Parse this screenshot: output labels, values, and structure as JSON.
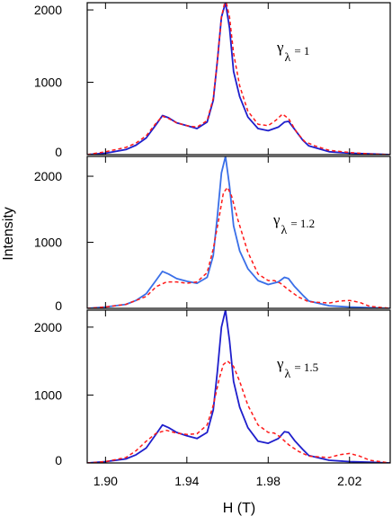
{
  "chart_data": {
    "type": "line",
    "xlabel": "H (T)",
    "ylabel": "Intensity",
    "xlim": [
      1.891,
      2.04
    ],
    "x_ticks": [
      1.9,
      1.94,
      1.98,
      2.02
    ],
    "x_tick_labels": [
      "1.90",
      "1.94",
      "1.98",
      "2.02"
    ],
    "grid": false,
    "panels": [
      {
        "annotation_symbol": "γ",
        "annotation_sub": "λ",
        "annotation_value": "= 1",
        "ylim": [
          0,
          2100
        ],
        "y_ticks": [
          0,
          1000,
          2000
        ],
        "y_tick_labels": [
          "0",
          "1000",
          "2000"
        ],
        "series": [
          {
            "color": "#1f1fcc",
            "style": "solid",
            "x": [
              1.891,
              1.9,
              1.91,
              1.915,
              1.92,
              1.925,
              1.928,
              1.931,
              1.935,
              1.94,
              1.945,
              1.95,
              1.953,
              1.955,
              1.957,
              1.959,
              1.961,
              1.963,
              1.966,
              1.97,
              1.975,
              1.98,
              1.985,
              1.988,
              1.99,
              1.993,
              1.997,
              2.0,
              2.01,
              2.02,
              2.03,
              2.04
            ],
            "y": [
              0,
              20,
              70,
              130,
              230,
              420,
              540,
              510,
              440,
              400,
              360,
              450,
              750,
              1300,
              1900,
              2100,
              1750,
              1150,
              800,
              520,
              360,
              330,
              380,
              450,
              460,
              350,
              200,
              120,
              40,
              20,
              10,
              0
            ]
          },
          {
            "color": "#ff1a1a",
            "style": "dashed",
            "x": [
              1.891,
              1.9,
              1.91,
              1.915,
              1.92,
              1.925,
              1.928,
              1.931,
              1.935,
              1.94,
              1.945,
              1.95,
              1.953,
              1.955,
              1.957,
              1.959,
              1.961,
              1.963,
              1.966,
              1.97,
              1.975,
              1.98,
              1.984,
              1.987,
              1.99,
              1.994,
              1.998,
              2.003,
              2.01,
              2.02,
              2.03,
              2.04
            ],
            "y": [
              0,
              40,
              100,
              160,
              260,
              440,
              530,
              500,
              440,
              400,
              380,
              470,
              780,
              1300,
              1900,
              2150,
              1900,
              1400,
              950,
              600,
              420,
              400,
              480,
              560,
              500,
              310,
              180,
              120,
              60,
              30,
              10,
              0
            ]
          }
        ]
      },
      {
        "annotation_symbol": "γ",
        "annotation_sub": "λ",
        "annotation_value": "= 1.2",
        "ylim": [
          0,
          2300
        ],
        "y_ticks": [
          0,
          1000,
          2000
        ],
        "y_tick_labels": [
          "0",
          "1000",
          "2000"
        ],
        "series": [
          {
            "color": "#3a6fe8",
            "style": "solid",
            "x": [
              1.891,
              1.9,
              1.91,
              1.915,
              1.92,
              1.925,
              1.928,
              1.931,
              1.935,
              1.94,
              1.945,
              1.95,
              1.953,
              1.955,
              1.957,
              1.959,
              1.961,
              1.963,
              1.966,
              1.97,
              1.975,
              1.98,
              1.985,
              1.988,
              1.99,
              1.993,
              1.997,
              2.0,
              2.01,
              2.02,
              2.03,
              2.04
            ],
            "y": [
              0,
              20,
              60,
              120,
              220,
              430,
              560,
              520,
              450,
              410,
              380,
              470,
              800,
              1400,
              2050,
              2300,
              1850,
              1250,
              870,
              600,
              420,
              360,
              400,
              470,
              450,
              330,
              200,
              110,
              40,
              20,
              10,
              0
            ]
          },
          {
            "color": "#ff1a1a",
            "style": "dashed",
            "x": [
              1.891,
              1.9,
              1.91,
              1.92,
              1.925,
              1.93,
              1.935,
              1.94,
              1.945,
              1.95,
              1.953,
              1.956,
              1.958,
              1.96,
              1.962,
              1.965,
              1.97,
              1.975,
              1.98,
              1.983,
              1.986,
              1.99,
              1.995,
              2.0,
              2.01,
              2.015,
              2.02,
              2.025,
              2.03,
              2.04
            ],
            "y": [
              0,
              20,
              60,
              180,
              330,
              400,
              400,
              380,
              400,
              540,
              900,
              1400,
              1750,
              1830,
              1700,
              1350,
              850,
              520,
              420,
              420,
              380,
              280,
              170,
              100,
              80,
              110,
              120,
              90,
              30,
              0
            ]
          }
        ]
      },
      {
        "annotation_symbol": "γ",
        "annotation_sub": "λ",
        "annotation_value": "= 1.5",
        "ylim": [
          0,
          2250
        ],
        "y_ticks": [
          0,
          1000,
          2000
        ],
        "y_tick_labels": [
          "0",
          "1000",
          "2000"
        ],
        "series": [
          {
            "color": "#1f1fcc",
            "style": "solid",
            "x": [
              1.891,
              1.9,
              1.91,
              1.915,
              1.92,
              1.925,
              1.928,
              1.931,
              1.935,
              1.94,
              1.945,
              1.95,
              1.953,
              1.955,
              1.957,
              1.959,
              1.961,
              1.963,
              1.966,
              1.97,
              1.975,
              1.98,
              1.985,
              1.988,
              1.99,
              1.993,
              1.997,
              2.0,
              2.01,
              2.02,
              2.03,
              2.04
            ],
            "y": [
              0,
              20,
              60,
              120,
              220,
              430,
              560,
              520,
              450,
              400,
              360,
              450,
              780,
              1350,
              2000,
              2250,
              1800,
              1200,
              820,
              520,
              320,
              290,
              360,
              460,
              450,
              330,
              200,
              110,
              40,
              20,
              10,
              0
            ]
          },
          {
            "color": "#ff1a1a",
            "style": "dashed",
            "x": [
              1.891,
              1.9,
              1.91,
              1.915,
              1.92,
              1.925,
              1.93,
              1.935,
              1.94,
              1.945,
              1.95,
              1.953,
              1.956,
              1.958,
              1.96,
              1.963,
              1.966,
              1.97,
              1.975,
              1.98,
              1.983,
              1.986,
              1.99,
              1.995,
              2.0,
              2.01,
              2.015,
              2.02,
              2.025,
              2.03,
              2.04
            ],
            "y": [
              0,
              20,
              80,
              180,
              320,
              440,
              480,
              440,
              420,
              430,
              560,
              850,
              1250,
              1450,
              1500,
              1420,
              1200,
              850,
              560,
              450,
              440,
              380,
              270,
              170,
              100,
              80,
              120,
              140,
              100,
              40,
              0
            ]
          }
        ]
      }
    ]
  }
}
